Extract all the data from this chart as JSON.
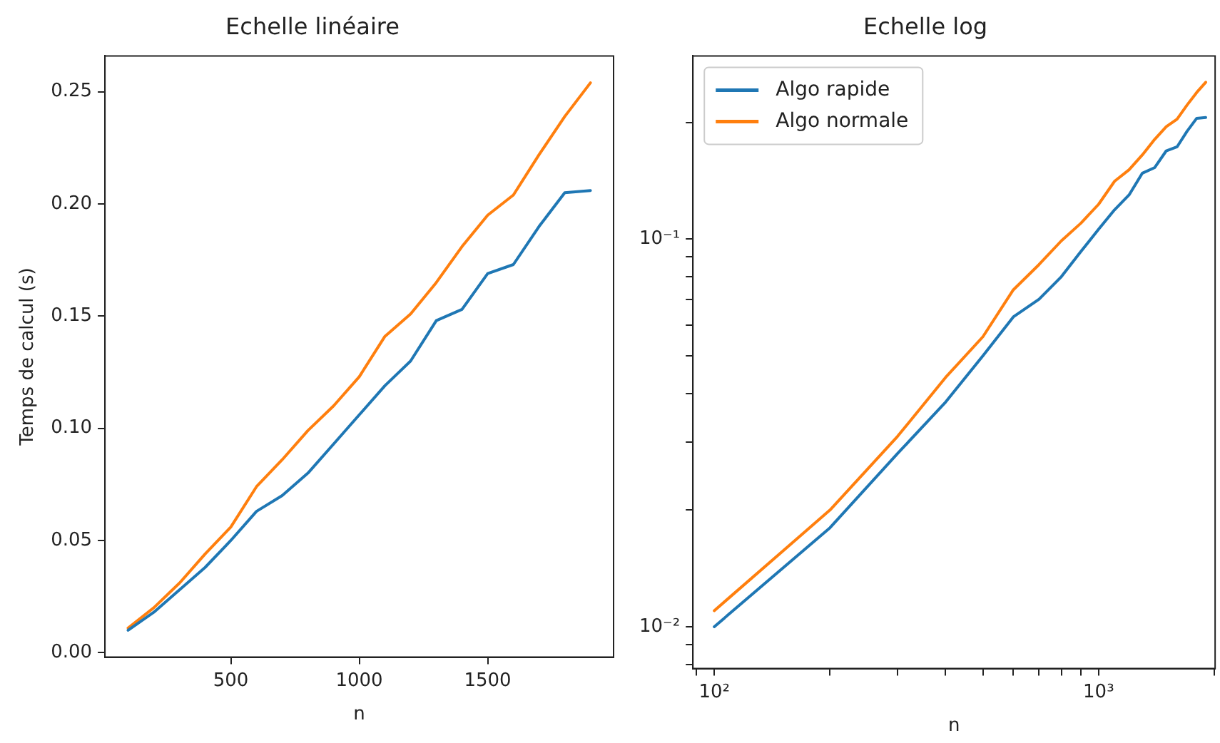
{
  "chart_data": [
    {
      "type": "line",
      "title": "Echelle linéaire",
      "xlabel": "n",
      "ylabel": "Temps de calcul (s)",
      "x": [
        100,
        200,
        300,
        400,
        500,
        600,
        700,
        800,
        900,
        1000,
        1100,
        1200,
        1300,
        1400,
        1500,
        1600,
        1700,
        1800,
        1900
      ],
      "series": [
        {
          "color": "#1f77b4",
          "values": [
            0.01,
            0.018,
            0.028,
            0.038,
            0.05,
            0.063,
            0.07,
            0.08,
            0.093,
            0.106,
            0.119,
            0.13,
            0.148,
            0.153,
            0.169,
            0.173,
            0.19,
            0.205,
            0.206
          ]
        },
        {
          "color": "#ff7f0e",
          "values": [
            0.011,
            0.02,
            0.031,
            0.044,
            0.056,
            0.074,
            0.086,
            0.099,
            0.11,
            0.123,
            0.141,
            0.151,
            0.165,
            0.181,
            0.195,
            0.204,
            0.222,
            0.239,
            0.254
          ]
        }
      ],
      "xlim": [
        10,
        1990
      ],
      "xticks": [
        500,
        1000,
        1500
      ],
      "ylim": [
        -0.002,
        0.266
      ],
      "yticks": [
        {
          "value": 0,
          "label": "0.00"
        },
        0.05,
        {
          "value": 0.1,
          "label": "0.10"
        },
        0.15,
        {
          "value": 0.2,
          "label": "0.20"
        },
        0.25
      ],
      "grid": false,
      "legend": false,
      "marker": "none",
      "line_style": "solid"
    },
    {
      "type": "line",
      "title": "Echelle log",
      "xlabel": "n",
      "log": "xy",
      "x": [
        100,
        200,
        300,
        400,
        500,
        600,
        700,
        800,
        900,
        1000,
        1100,
        1200,
        1300,
        1400,
        1500,
        1600,
        1700,
        1800,
        1900
      ],
      "series": [
        {
          "name": "Algo rapide",
          "color": "#1f77b4",
          "values": [
            0.01,
            0.018,
            0.028,
            0.038,
            0.05,
            0.063,
            0.07,
            0.08,
            0.093,
            0.106,
            0.119,
            0.13,
            0.148,
            0.153,
            0.169,
            0.173,
            0.19,
            0.205,
            0.206
          ]
        },
        {
          "name": "Algo normale",
          "color": "#ff7f0e",
          "values": [
            0.011,
            0.02,
            0.031,
            0.044,
            0.056,
            0.074,
            0.086,
            0.099,
            0.11,
            0.123,
            0.141,
            0.151,
            0.165,
            0.181,
            0.195,
            0.204,
            0.222,
            0.239,
            0.254
          ]
        }
      ],
      "xlim": [
        88,
        2010
      ],
      "xticks": [
        {
          "value": 90,
          "label": null
        },
        {
          "value": 100,
          "label": "10²"
        },
        {
          "value": 200,
          "label": null
        },
        {
          "value": 300,
          "label": null
        },
        {
          "value": 400,
          "label": null
        },
        {
          "value": 500,
          "label": null
        },
        {
          "value": 600,
          "label": null
        },
        {
          "value": 700,
          "label": null
        },
        {
          "value": 800,
          "label": null
        },
        {
          "value": 900,
          "label": null
        },
        {
          "value": 1000,
          "label": "10³"
        },
        {
          "value": 2000,
          "label": null
        }
      ],
      "ylim": [
        0.0078,
        0.297
      ],
      "yticks": [
        {
          "value": 0.008,
          "label": null
        },
        {
          "value": 0.009,
          "label": null
        },
        {
          "value": 0.01,
          "label": "10⁻²"
        },
        {
          "value": 0.02,
          "label": null
        },
        {
          "value": 0.03,
          "label": null
        },
        {
          "value": 0.04,
          "label": null
        },
        {
          "value": 0.05,
          "label": null
        },
        {
          "value": 0.06,
          "label": null
        },
        {
          "value": 0.07,
          "label": null
        },
        {
          "value": 0.08,
          "label": null
        },
        {
          "value": 0.09,
          "label": null
        },
        {
          "value": 0.1,
          "label": "10⁻¹"
        },
        {
          "value": 0.2,
          "label": null
        }
      ],
      "grid": false,
      "legend": "top left",
      "marker": "none",
      "line_style": "solid"
    }
  ]
}
